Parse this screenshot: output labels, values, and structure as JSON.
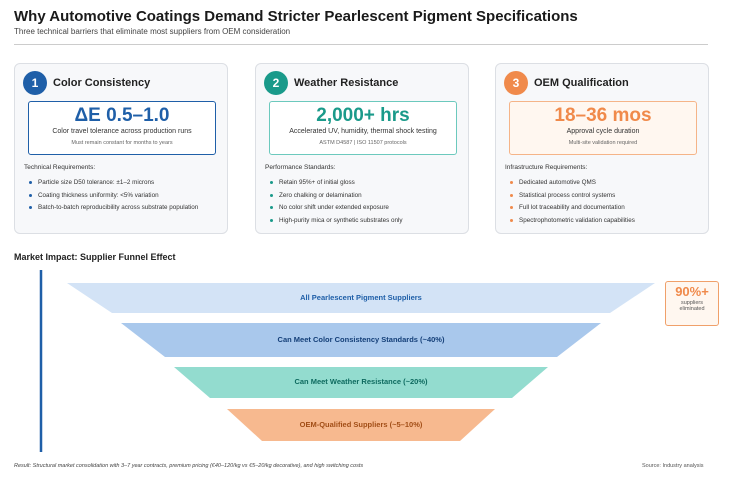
{
  "header": {
    "title": "Why Automotive Coatings Demand Stricter Pearlescent Pigment Specifications",
    "subtitle": "Three technical barriers that eliminate most suppliers from OEM consideration"
  },
  "cards": [
    {
      "number": "1",
      "title": "Color Consistency",
      "metric": "ΔE 0.5–1.0",
      "metric_caption": "Color travel tolerance across production runs",
      "metric_note": "Must remain constant for months to years",
      "section_label": "Technical Requirements:",
      "items": [
        "Particle size D50 tolerance: ±1–2 microns",
        "Coating thickness uniformity: <5% variation",
        "Batch-to-batch reproducibility across substrate population"
      ]
    },
    {
      "number": "2",
      "title": "Weather Resistance",
      "metric": "2,000+ hrs",
      "metric_caption": "Accelerated UV, humidity, thermal shock testing",
      "metric_note": "ASTM D4587 | ISO 11507 protocols",
      "section_label": "Performance Standards:",
      "items": [
        "Retain 95%+ of initial gloss",
        "Zero chalking or delamination",
        "No color shift under extended exposure",
        "High-purity mica or synthetic substrates only"
      ]
    },
    {
      "number": "3",
      "title": "OEM Qualification",
      "metric": "18–36 mos",
      "metric_caption": "Approval cycle duration",
      "metric_note": "Multi-site validation required",
      "section_label": "Infrastructure Requirements:",
      "items": [
        "Dedicated automotive QMS",
        "Statistical process control systems",
        "Full lot traceability and documentation",
        "Spectrophotometric validation capabilities"
      ]
    }
  ],
  "funnel": {
    "title": "Market Impact: Supplier Funnel Effect",
    "stages": [
      "All Pearlescent Pigment Suppliers",
      "Can Meet Color Consistency Standards (~40%)",
      "Can Meet Weather Resistance (~20%)",
      "OEM-Qualified Suppliers (~5–10%)"
    ],
    "callout": {
      "value": "90%+",
      "label": "suppliers eliminated"
    }
  },
  "footer": {
    "note": "Result: Structural market consolidation with 3–7 year contracts, premium pricing (€40–120/kg vs €5–20/kg decorative), and high switching costs",
    "source": "Source: Industry analysis"
  }
}
